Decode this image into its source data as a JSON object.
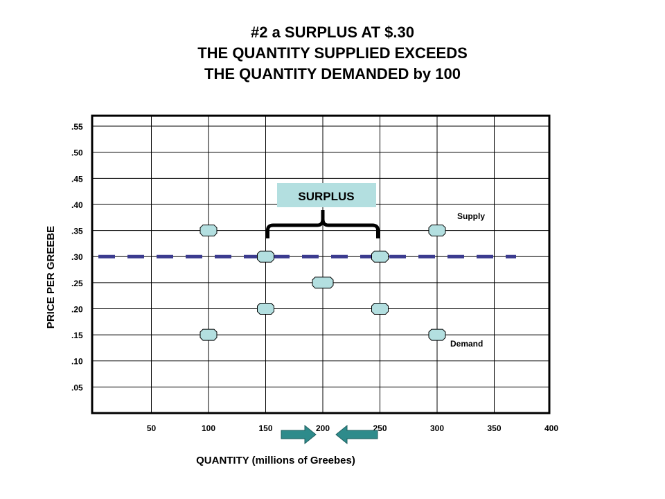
{
  "title_lines": [
    "#2 a SURPLUS AT $.30",
    "THE QUANTITY SUPPLIED EXCEEDS",
    "THE QUANTITY DEMANDED by 100"
  ],
  "chart_data": {
    "type": "scatter",
    "xlabel": "QUANTITY (millions of Greebes)",
    "ylabel": "PRICE PER GREEBE",
    "x_ticks": [
      "50",
      "100",
      "150",
      "200",
      "250",
      "300",
      "350",
      "400"
    ],
    "y_ticks": [
      ".55",
      ".50",
      ".45",
      ".40",
      ".35",
      ".30",
      ".25",
      ".20",
      ".15",
      ".10",
      ".05"
    ],
    "xlim": [
      0,
      400
    ],
    "ylim": [
      0,
      0.57
    ],
    "grid": true,
    "series": [
      {
        "name": "Supply",
        "points": [
          {
            "x": 100,
            "y": 0.15
          },
          {
            "x": 150,
            "y": 0.2
          },
          {
            "x": 200,
            "y": 0.25
          },
          {
            "x": 250,
            "y": 0.3
          },
          {
            "x": 300,
            "y": 0.35
          }
        ]
      },
      {
        "name": "Demand",
        "points": [
          {
            "x": 100,
            "y": 0.35
          },
          {
            "x": 150,
            "y": 0.3
          },
          {
            "x": 200,
            "y": 0.25
          },
          {
            "x": 250,
            "y": 0.2
          },
          {
            "x": 300,
            "y": 0.15
          }
        ]
      }
    ],
    "price_line": {
      "y": 0.3,
      "style": "dashed",
      "color": "#3b3b8f"
    },
    "annotations": {
      "surplus_label": "SURPLUS",
      "surplus_range": [
        150,
        250
      ],
      "supply_label": "Supply",
      "demand_label": "Demand"
    },
    "arrows": {
      "toward_x": 200,
      "color": "#2e8b8b"
    },
    "colors": {
      "marker_fill": "#b3dfe0",
      "marker_stroke": "#000000",
      "surplus_box": "#b3dfe0",
      "brace": "#000000"
    }
  }
}
